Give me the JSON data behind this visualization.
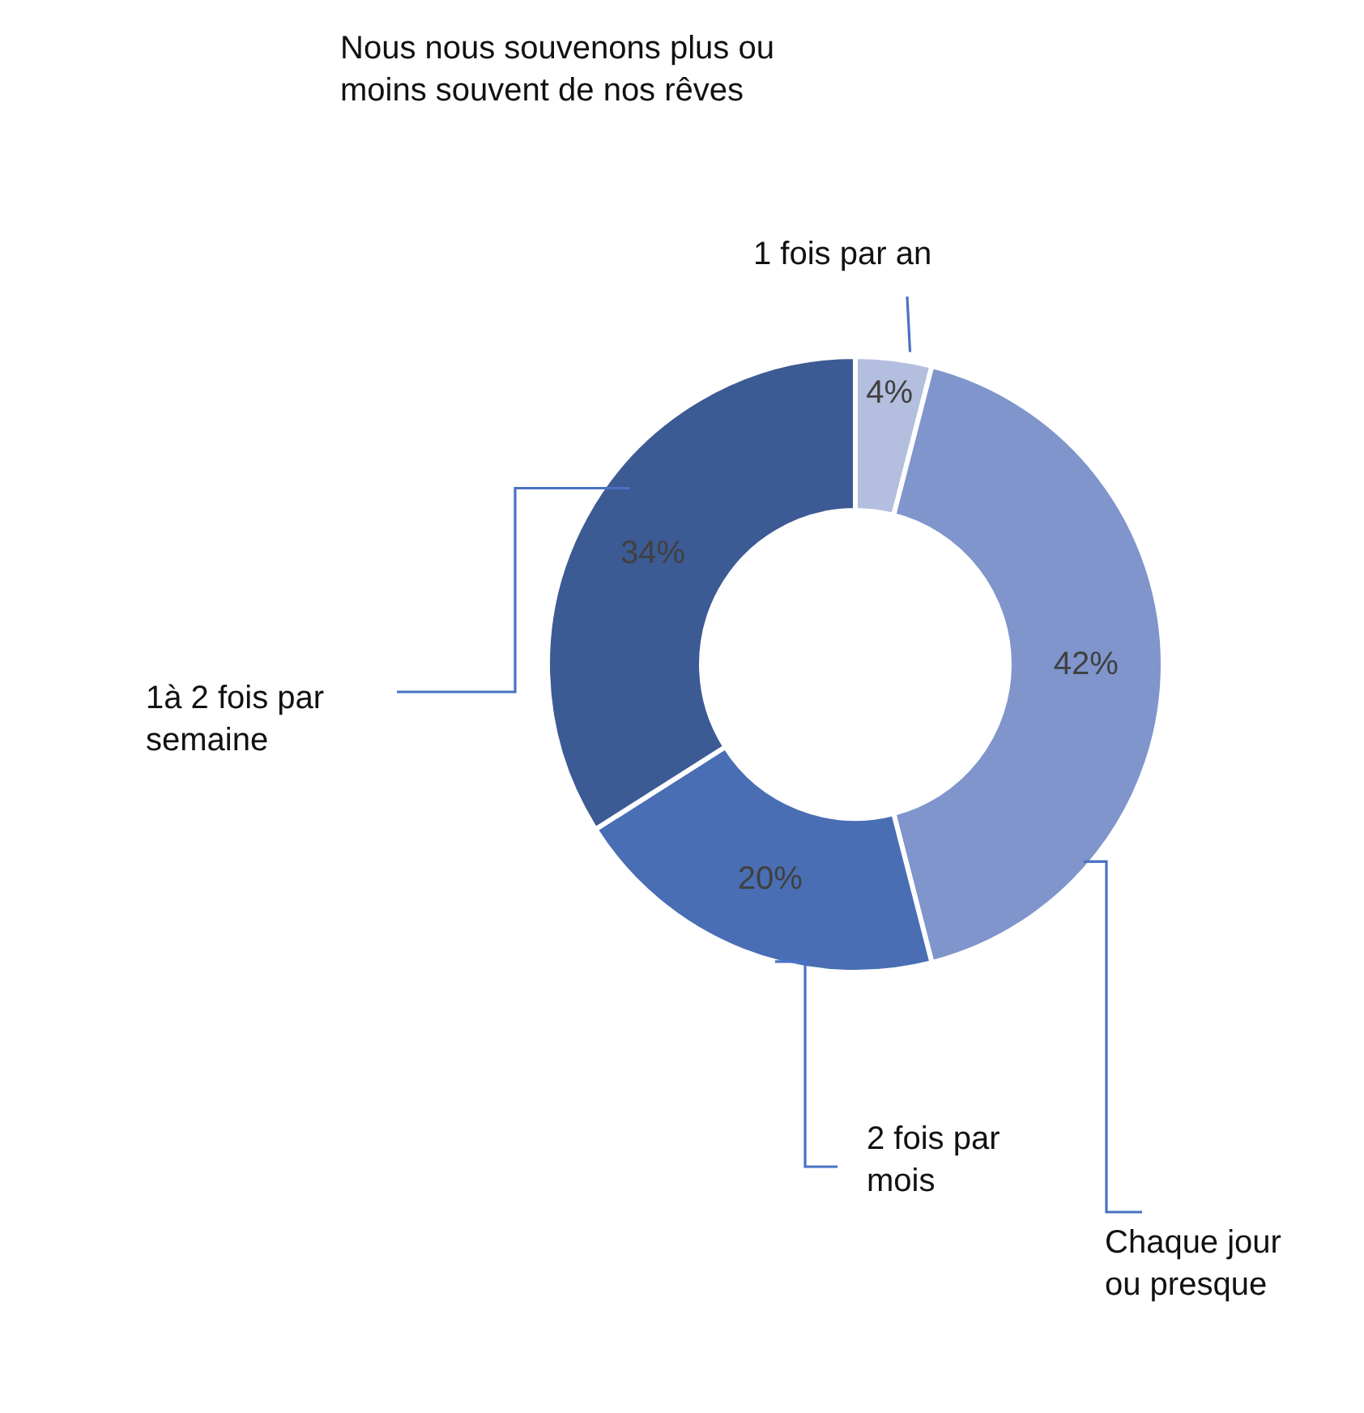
{
  "chart_data": {
    "type": "donut",
    "title": "Nous nous souvenons plus ou moins souvent de nos rêves",
    "categories": [
      "1 fois par an",
      "Chaque jour ou presque",
      "2 fois par mois",
      "1à 2 fois par semaine"
    ],
    "values": [
      4,
      42,
      20,
      34
    ],
    "colors": [
      "#b4bede",
      "#7f95cb",
      "#496eb4",
      "#3c5a94"
    ],
    "value_labels": [
      "4%",
      "42%",
      "20%",
      "34%"
    ],
    "legend": false
  }
}
